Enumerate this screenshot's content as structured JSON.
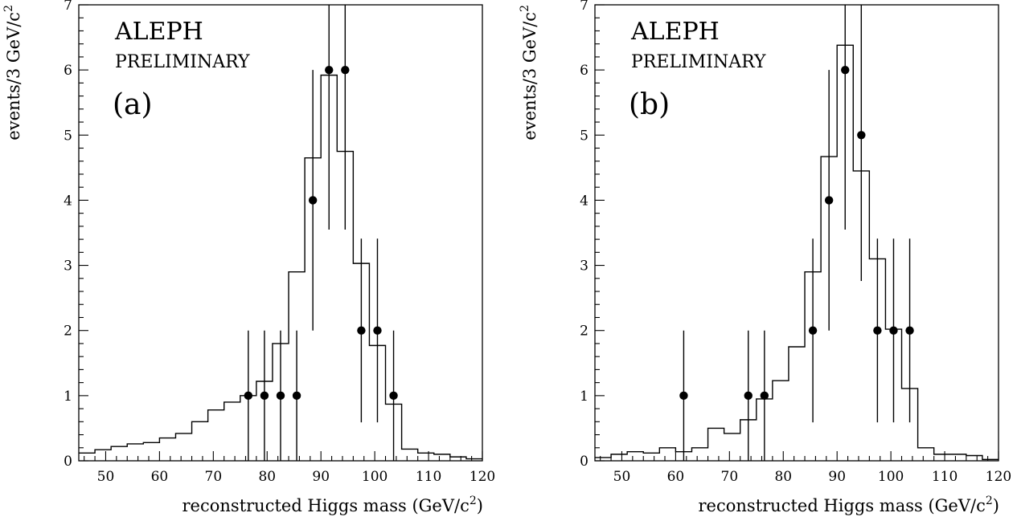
{
  "chart_data": [
    {
      "type": "histogram",
      "panel_label": "(a)",
      "experiment": "ALEPH",
      "status": "PRELIMINARY",
      "xlabel": "reconstructed Higgs mass (GeV/c",
      "xlabel_sup": "2",
      "xlabel_end": ")",
      "ylabel": "events/3 GeV/c",
      "ylabel_sup": "2",
      "xlim": [
        45,
        120
      ],
      "ylim": [
        0,
        7
      ],
      "xticks": [
        50,
        60,
        70,
        80,
        90,
        100,
        110,
        120
      ],
      "yticks": [
        0,
        1,
        2,
        3,
        4,
        5,
        6,
        7
      ],
      "histogram": {
        "edges": [
          45,
          48,
          51,
          54,
          57,
          60,
          63,
          66,
          69,
          72,
          75,
          78,
          81,
          84,
          87,
          90,
          93,
          96,
          99,
          102,
          105,
          108,
          111,
          114,
          117,
          120
        ],
        "values": [
          0.12,
          0.17,
          0.22,
          0.26,
          0.28,
          0.35,
          0.42,
          0.6,
          0.78,
          0.9,
          1.0,
          1.22,
          1.8,
          2.9,
          4.65,
          5.92,
          4.75,
          3.03,
          1.77,
          0.87,
          0.18,
          0.12,
          0.1,
          0.06,
          0.03
        ]
      },
      "data_points": [
        {
          "x": 76.5,
          "y": 1,
          "err_lo": 1.0,
          "err_hi": 1.0
        },
        {
          "x": 79.5,
          "y": 1,
          "err_lo": 1.0,
          "err_hi": 1.0
        },
        {
          "x": 82.5,
          "y": 1,
          "err_lo": 1.0,
          "err_hi": 1.0
        },
        {
          "x": 85.5,
          "y": 1,
          "err_lo": 1.0,
          "err_hi": 1.0
        },
        {
          "x": 88.5,
          "y": 4,
          "err_lo": 2.0,
          "err_hi": 2.0
        },
        {
          "x": 91.5,
          "y": 6,
          "err_lo": 2.45,
          "err_hi": 2.45
        },
        {
          "x": 94.5,
          "y": 6,
          "err_lo": 2.45,
          "err_hi": 2.45
        },
        {
          "x": 97.5,
          "y": 2,
          "err_lo": 1.41,
          "err_hi": 1.41
        },
        {
          "x": 100.5,
          "y": 2,
          "err_lo": 1.41,
          "err_hi": 1.41
        },
        {
          "x": 103.5,
          "y": 1,
          "err_lo": 1.0,
          "err_hi": 1.0
        }
      ]
    },
    {
      "type": "histogram",
      "panel_label": "(b)",
      "experiment": "ALEPH",
      "status": "PRELIMINARY",
      "xlabel": "reconstructed Higgs mass (GeV/c",
      "xlabel_sup": "2",
      "xlabel_end": ")",
      "ylabel": "events/3 GeV/c",
      "ylabel_sup": "2",
      "xlim": [
        45,
        120
      ],
      "ylim": [
        0,
        7
      ],
      "xticks": [
        50,
        60,
        70,
        80,
        90,
        100,
        110,
        120
      ],
      "yticks": [
        0,
        1,
        2,
        3,
        4,
        5,
        6,
        7
      ],
      "histogram": {
        "edges": [
          45,
          48,
          51,
          54,
          57,
          60,
          63,
          66,
          69,
          72,
          75,
          78,
          81,
          84,
          87,
          90,
          93,
          96,
          99,
          102,
          105,
          108,
          111,
          114,
          117,
          120
        ],
        "values": [
          0.05,
          0.1,
          0.14,
          0.12,
          0.2,
          0.14,
          0.2,
          0.5,
          0.42,
          0.63,
          0.95,
          1.23,
          1.75,
          2.9,
          4.67,
          6.38,
          4.45,
          3.1,
          2.02,
          1.11,
          0.2,
          0.1,
          0.1,
          0.08,
          0.02
        ]
      },
      "data_points": [
        {
          "x": 61.5,
          "y": 1,
          "err_lo": 1.0,
          "err_hi": 1.0
        },
        {
          "x": 73.5,
          "y": 1,
          "err_lo": 1.0,
          "err_hi": 1.0
        },
        {
          "x": 76.5,
          "y": 1,
          "err_lo": 1.0,
          "err_hi": 1.0
        },
        {
          "x": 85.5,
          "y": 2,
          "err_lo": 1.41,
          "err_hi": 1.41
        },
        {
          "x": 88.5,
          "y": 4,
          "err_lo": 2.0,
          "err_hi": 2.0
        },
        {
          "x": 91.5,
          "y": 6,
          "err_lo": 2.45,
          "err_hi": 2.45
        },
        {
          "x": 94.5,
          "y": 5,
          "err_lo": 2.24,
          "err_hi": 2.24
        },
        {
          "x": 97.5,
          "y": 2,
          "err_lo": 1.41,
          "err_hi": 1.41
        },
        {
          "x": 100.5,
          "y": 2,
          "err_lo": 1.41,
          "err_hi": 1.41
        },
        {
          "x": 103.5,
          "y": 2,
          "err_lo": 1.41,
          "err_hi": 1.41
        }
      ]
    }
  ]
}
